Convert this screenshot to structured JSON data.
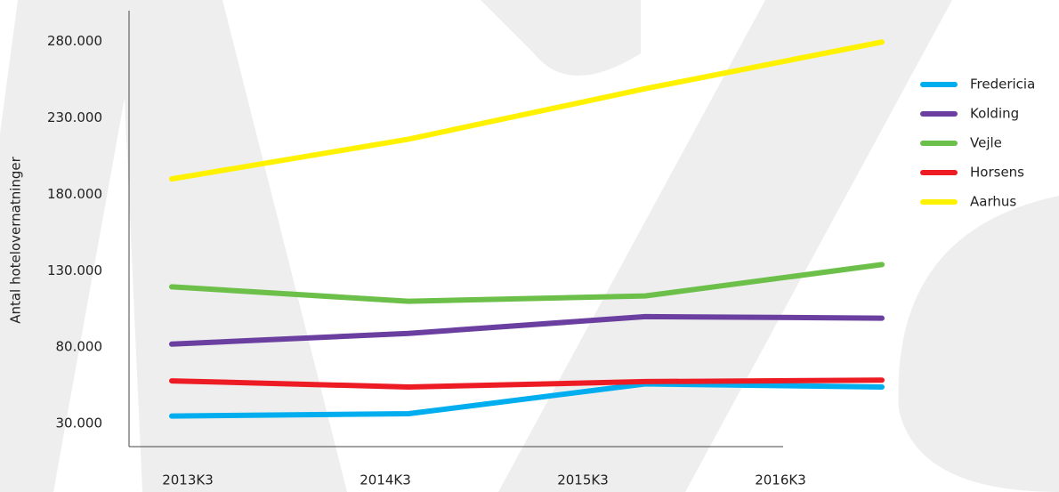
{
  "chart_data": {
    "type": "line",
    "y_label": "Antal hotelovernatninger",
    "categories": [
      "2013K3",
      "2014K3",
      "2015K3",
      "2016K3"
    ],
    "series": [
      {
        "name": "Fredericia",
        "color": "#00aeef",
        "values": [
          35000,
          36500,
          56000,
          54000
        ]
      },
      {
        "name": "Kolding",
        "color": "#6b3fa0",
        "values": [
          82000,
          89000,
          100000,
          99000
        ]
      },
      {
        "name": "Vejle",
        "color": "#6cc04a",
        "values": [
          119500,
          110000,
          113500,
          134000
        ]
      },
      {
        "name": "Horsens",
        "color": "#ed1c24",
        "values": [
          58000,
          54000,
          57500,
          58500
        ]
      },
      {
        "name": "Aarhus",
        "color": "#fff200",
        "values": [
          190000,
          216000,
          249000,
          279500
        ]
      }
    ],
    "ylim": [
      15000,
      300000
    ],
    "yticks": [
      {
        "value": 30000,
        "label": "30.000"
      },
      {
        "value": 80000,
        "label": "80.000"
      },
      {
        "value": 130000,
        "label": "130.000"
      },
      {
        "value": 180000,
        "label": "180.000"
      },
      {
        "value": 230000,
        "label": "230.000"
      },
      {
        "value": 280000,
        "label": "280.000"
      }
    ],
    "legend": "right"
  }
}
